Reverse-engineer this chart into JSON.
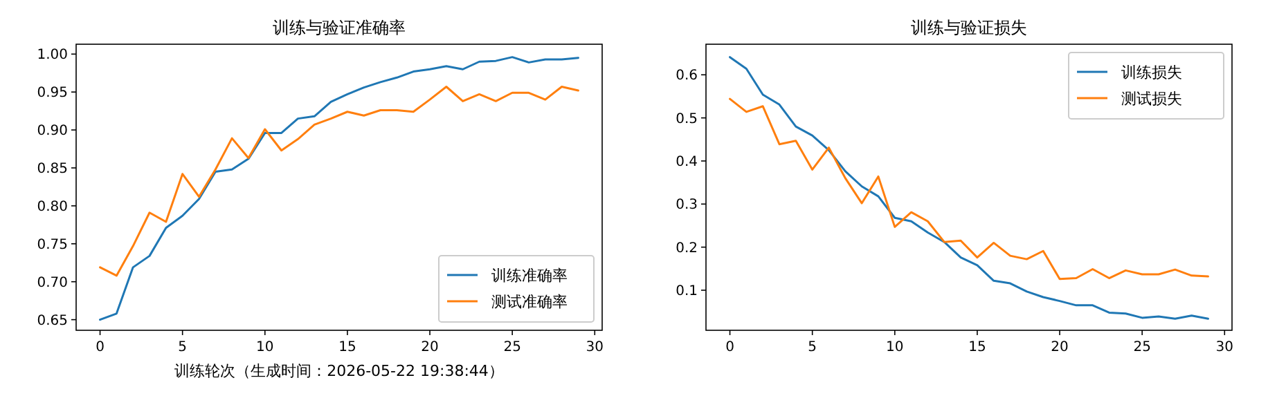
{
  "chart_data": [
    {
      "type": "line",
      "title": "训练与验证准确率",
      "xlabel": "训练轮次（生成时间：2026-05-22 19:38:44）",
      "x": [
        0,
        1,
        2,
        3,
        4,
        5,
        6,
        7,
        8,
        9,
        10,
        11,
        12,
        13,
        14,
        15,
        16,
        17,
        18,
        19,
        20,
        21,
        22,
        23,
        24,
        25,
        26,
        27,
        28,
        29
      ],
      "xlim": [
        -1.45,
        30.45
      ],
      "xticks": [
        0,
        5,
        10,
        15,
        20,
        25,
        30
      ],
      "ylim": [
        0.636,
        1.013
      ],
      "yticks": [
        {
          "value": 0.65,
          "label": "0.65"
        },
        {
          "value": 0.7,
          "label": "0.70"
        },
        {
          "value": 0.75,
          "label": "0.75"
        },
        {
          "value": 0.8,
          "label": "0.80"
        },
        {
          "value": 0.85,
          "label": "0.85"
        },
        {
          "value": 0.9,
          "label": "0.90"
        },
        {
          "value": 0.95,
          "label": "0.95"
        },
        {
          "value": 1.0,
          "label": "1.00"
        }
      ],
      "grid": false,
      "legend": "bottom right",
      "marker": "none",
      "line_style": "solid",
      "series": [
        {
          "name": "训练准确率",
          "color": "#1f77b4",
          "values": [
            0.65,
            0.658,
            0.719,
            0.734,
            0.771,
            0.787,
            0.809,
            0.845,
            0.848,
            0.862,
            0.896,
            0.896,
            0.915,
            0.918,
            0.937,
            0.947,
            0.956,
            0.963,
            0.969,
            0.977,
            0.98,
            0.984,
            0.98,
            0.99,
            0.991,
            0.996,
            0.989,
            0.993,
            0.993,
            0.995
          ]
        },
        {
          "name": "测试准确率",
          "color": "#ff7f0e",
          "values": [
            0.719,
            0.708,
            0.747,
            0.791,
            0.779,
            0.842,
            0.812,
            0.848,
            0.889,
            0.863,
            0.901,
            0.873,
            0.888,
            0.907,
            0.915,
            0.924,
            0.919,
            0.926,
            0.926,
            0.924,
            0.94,
            0.957,
            0.938,
            0.947,
            0.938,
            0.949,
            0.949,
            0.94,
            0.957,
            0.952
          ]
        }
      ]
    },
    {
      "type": "line",
      "title": "训练与验证损失",
      "x": [
        0,
        1,
        2,
        3,
        4,
        5,
        6,
        7,
        8,
        9,
        10,
        11,
        12,
        13,
        14,
        15,
        16,
        17,
        18,
        19,
        20,
        21,
        22,
        23,
        24,
        25,
        26,
        27,
        28,
        29
      ],
      "xlim": [
        -1.45,
        30.45
      ],
      "xticks": [
        0,
        5,
        10,
        15,
        20,
        25,
        30
      ],
      "ylim": [
        0.007,
        0.671
      ],
      "yticks": [
        0.1,
        0.2,
        0.3,
        0.4,
        0.5,
        0.6
      ],
      "grid": false,
      "legend": "top right",
      "marker": "none",
      "line_style": "solid",
      "series": [
        {
          "name": "训练损失",
          "color": "#1f77b4",
          "values": [
            0.641,
            0.614,
            0.554,
            0.531,
            0.48,
            0.459,
            0.425,
            0.376,
            0.341,
            0.318,
            0.268,
            0.26,
            0.234,
            0.212,
            0.176,
            0.158,
            0.122,
            0.116,
            0.097,
            0.084,
            0.075,
            0.065,
            0.065,
            0.048,
            0.046,
            0.036,
            0.039,
            0.034,
            0.041,
            0.034
          ]
        },
        {
          "name": "测试损失",
          "color": "#ff7f0e",
          "values": [
            0.544,
            0.514,
            0.527,
            0.439,
            0.447,
            0.38,
            0.431,
            0.36,
            0.302,
            0.364,
            0.247,
            0.281,
            0.26,
            0.212,
            0.215,
            0.176,
            0.21,
            0.18,
            0.172,
            0.191,
            0.126,
            0.128,
            0.149,
            0.128,
            0.146,
            0.137,
            0.137,
            0.148,
            0.134,
            0.132
          ]
        }
      ]
    }
  ]
}
